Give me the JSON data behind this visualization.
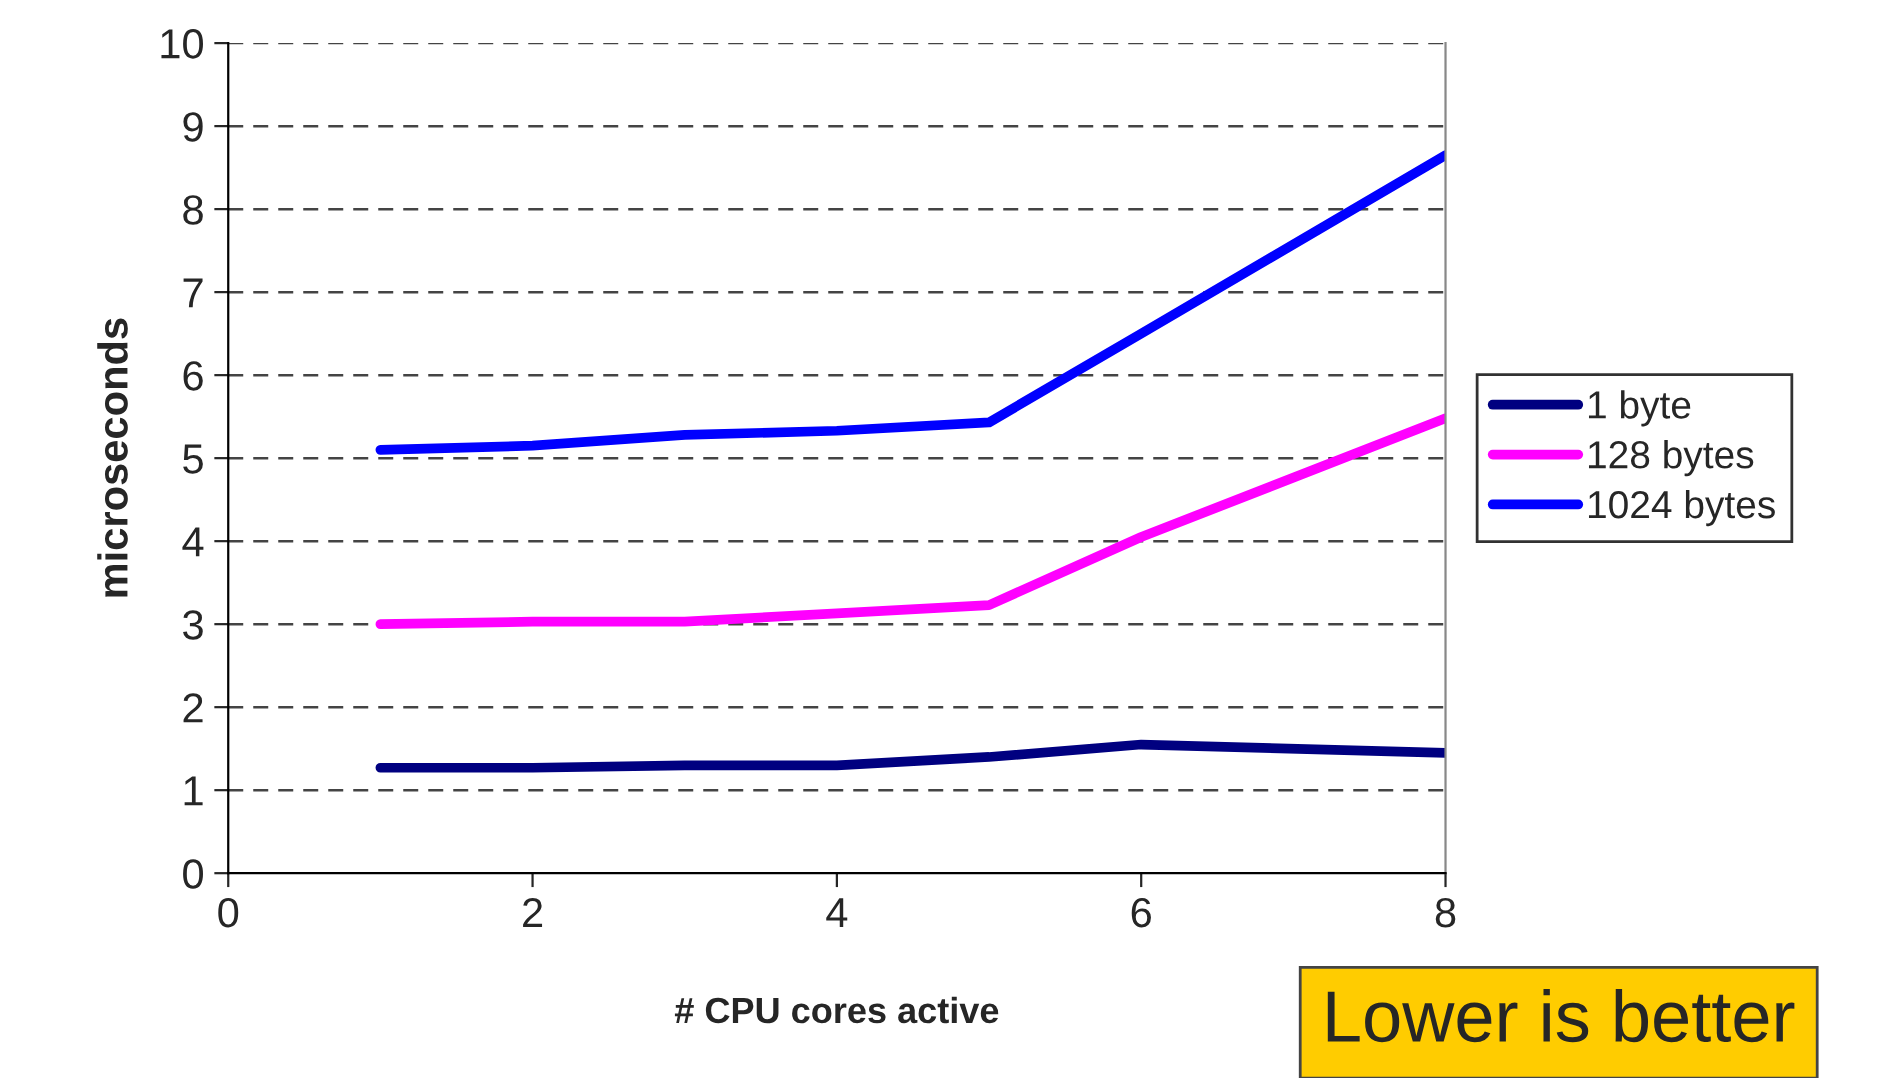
{
  "chart_data": {
    "type": "line",
    "xlabel": "# CPU cores active",
    "ylabel": "microseconds",
    "x": [
      1,
      2,
      3,
      4,
      5,
      6,
      8
    ],
    "series": [
      {
        "name": "1 byte",
        "color": "#000080",
        "values": [
          1.27,
          1.27,
          1.3,
          1.3,
          1.4,
          1.55,
          1.45
        ]
      },
      {
        "name": "128 bytes",
        "color": "#ff00ff",
        "values": [
          3.0,
          3.03,
          3.03,
          3.13,
          3.23,
          4.05,
          5.48
        ]
      },
      {
        "name": "1024 bytes",
        "color": "#0000ff",
        "values": [
          5.1,
          5.15,
          5.28,
          5.33,
          5.43,
          6.5,
          8.65
        ]
      }
    ],
    "xlim": [
      0,
      8
    ],
    "xticks": [
      0,
      2,
      4,
      6,
      8
    ],
    "ylim": [
      0,
      10
    ],
    "yticks": [
      0,
      1,
      2,
      3,
      4,
      5,
      6,
      7,
      8,
      9,
      10
    ],
    "grid": "y",
    "legend": "right",
    "marker": "none",
    "line_style": "solid",
    "annotations": [
      "Lower is better"
    ]
  }
}
